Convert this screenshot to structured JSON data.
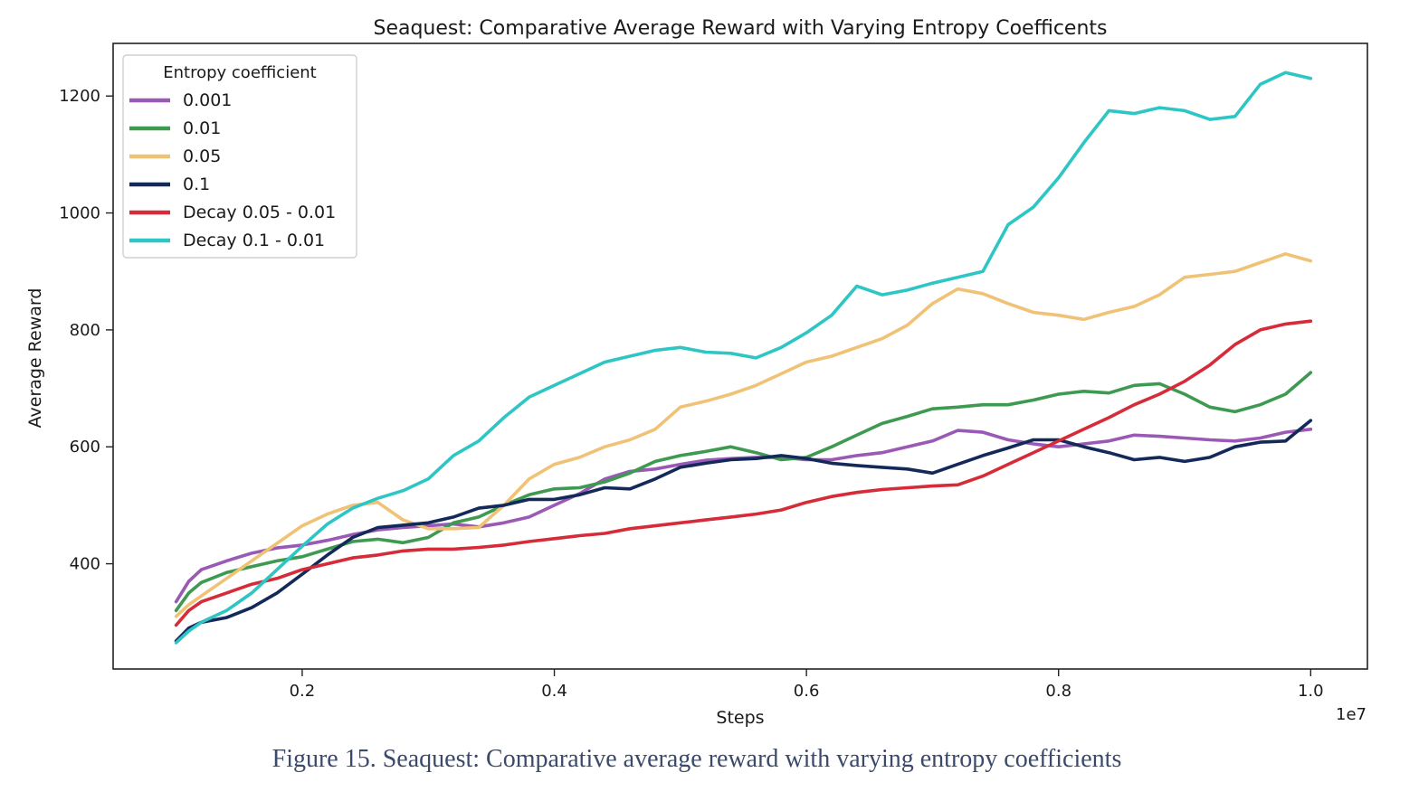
{
  "figure": {
    "caption": "Figure 15. Seaquest: Comparative average reward with varying entropy coefficients",
    "caption_color": "#3b4a6b"
  },
  "chart_data": {
    "type": "line",
    "title": "Seaquest: Comparative Average Reward with Varying Entropy Coefficents",
    "xlabel": "Steps",
    "ylabel": "Average Reward",
    "x_offset_text": "1e7",
    "xlim": [
      0.05,
      1.045
    ],
    "ylim": [
      220,
      1290
    ],
    "xticks": [
      0.2,
      0.4,
      0.6,
      0.8,
      1.0
    ],
    "xtick_labels": [
      "0.2",
      "0.4",
      "0.6",
      "0.8",
      "1.0"
    ],
    "yticks": [
      400,
      600,
      800,
      1000,
      1200
    ],
    "ytick_labels": [
      "400",
      "600",
      "800",
      "1000",
      "1200"
    ],
    "grid": false,
    "legend": {
      "title": "Entropy coefficient",
      "location": "upper-left"
    },
    "series": [
      {
        "name": "0.001",
        "color": "#9b59b6",
        "x": [
          0.1,
          0.11,
          0.12,
          0.14,
          0.16,
          0.18,
          0.2,
          0.22,
          0.24,
          0.26,
          0.28,
          0.3,
          0.32,
          0.34,
          0.36,
          0.38,
          0.4,
          0.42,
          0.44,
          0.46,
          0.48,
          0.5,
          0.52,
          0.54,
          0.56,
          0.58,
          0.6,
          0.62,
          0.64,
          0.66,
          0.68,
          0.7,
          0.72,
          0.74,
          0.76,
          0.78,
          0.8,
          0.82,
          0.84,
          0.86,
          0.88,
          0.9,
          0.92,
          0.94,
          0.96,
          0.98,
          1.0
        ],
        "y": [
          335,
          370,
          390,
          405,
          418,
          427,
          432,
          440,
          450,
          458,
          462,
          465,
          468,
          463,
          470,
          480,
          500,
          520,
          545,
          558,
          562,
          570,
          577,
          580,
          582,
          582,
          578,
          578,
          585,
          590,
          600,
          610,
          628,
          625,
          612,
          605,
          600,
          605,
          610,
          620,
          618,
          615,
          612,
          610,
          615,
          625,
          630
        ]
      },
      {
        "name": "0.01",
        "color": "#3d9a50",
        "x": [
          0.1,
          0.11,
          0.12,
          0.14,
          0.16,
          0.18,
          0.2,
          0.22,
          0.24,
          0.26,
          0.28,
          0.3,
          0.32,
          0.34,
          0.36,
          0.38,
          0.4,
          0.42,
          0.44,
          0.46,
          0.48,
          0.5,
          0.52,
          0.54,
          0.56,
          0.58,
          0.6,
          0.62,
          0.64,
          0.66,
          0.68,
          0.7,
          0.72,
          0.74,
          0.76,
          0.78,
          0.8,
          0.82,
          0.84,
          0.86,
          0.88,
          0.9,
          0.92,
          0.94,
          0.96,
          0.98,
          1.0
        ],
        "y": [
          320,
          350,
          368,
          385,
          395,
          405,
          412,
          425,
          438,
          442,
          436,
          445,
          470,
          480,
          500,
          518,
          528,
          530,
          540,
          555,
          575,
          585,
          592,
          600,
          590,
          578,
          582,
          600,
          620,
          640,
          652,
          665,
          668,
          672,
          672,
          680,
          690,
          695,
          692,
          705,
          708,
          690,
          668,
          660,
          672,
          690,
          727
        ]
      },
      {
        "name": "0.05",
        "color": "#f0c276",
        "x": [
          0.1,
          0.11,
          0.12,
          0.14,
          0.16,
          0.18,
          0.2,
          0.22,
          0.24,
          0.26,
          0.28,
          0.3,
          0.32,
          0.34,
          0.36,
          0.38,
          0.4,
          0.42,
          0.44,
          0.46,
          0.48,
          0.5,
          0.52,
          0.54,
          0.56,
          0.58,
          0.6,
          0.62,
          0.64,
          0.66,
          0.68,
          0.7,
          0.72,
          0.74,
          0.76,
          0.78,
          0.8,
          0.82,
          0.84,
          0.86,
          0.88,
          0.9,
          0.92,
          0.94,
          0.96,
          0.98,
          1.0
        ],
        "y": [
          310,
          330,
          345,
          375,
          405,
          435,
          465,
          485,
          500,
          505,
          475,
          460,
          460,
          462,
          500,
          545,
          570,
          582,
          600,
          612,
          630,
          668,
          678,
          690,
          705,
          725,
          745,
          755,
          770,
          785,
          808,
          845,
          870,
          862,
          845,
          830,
          825,
          818,
          830,
          840,
          860,
          890,
          895,
          900,
          915,
          930,
          918
        ]
      },
      {
        "name": "0.1",
        "color": "#13295a",
        "x": [
          0.1,
          0.11,
          0.12,
          0.14,
          0.16,
          0.18,
          0.2,
          0.22,
          0.24,
          0.26,
          0.28,
          0.3,
          0.32,
          0.34,
          0.36,
          0.38,
          0.4,
          0.42,
          0.44,
          0.46,
          0.48,
          0.5,
          0.52,
          0.54,
          0.56,
          0.58,
          0.6,
          0.62,
          0.64,
          0.66,
          0.68,
          0.7,
          0.72,
          0.74,
          0.76,
          0.78,
          0.8,
          0.82,
          0.84,
          0.86,
          0.88,
          0.9,
          0.92,
          0.94,
          0.96,
          0.98,
          1.0
        ],
        "y": [
          268,
          290,
          300,
          308,
          325,
          350,
          382,
          415,
          445,
          462,
          466,
          470,
          480,
          495,
          500,
          510,
          510,
          518,
          530,
          528,
          545,
          565,
          572,
          578,
          580,
          585,
          580,
          572,
          568,
          565,
          562,
          555,
          570,
          585,
          598,
          612,
          612,
          600,
          590,
          578,
          582,
          575,
          582,
          600,
          608,
          610,
          645
        ]
      },
      {
        "name": "Decay 0.05 - 0.01",
        "color": "#d62b38",
        "x": [
          0.1,
          0.11,
          0.12,
          0.14,
          0.16,
          0.18,
          0.2,
          0.22,
          0.24,
          0.26,
          0.28,
          0.3,
          0.32,
          0.34,
          0.36,
          0.38,
          0.4,
          0.42,
          0.44,
          0.46,
          0.48,
          0.5,
          0.52,
          0.54,
          0.56,
          0.58,
          0.6,
          0.62,
          0.64,
          0.66,
          0.68,
          0.7,
          0.72,
          0.74,
          0.76,
          0.78,
          0.8,
          0.82,
          0.84,
          0.86,
          0.88,
          0.9,
          0.92,
          0.94,
          0.96,
          0.98,
          1.0
        ],
        "y": [
          295,
          320,
          335,
          350,
          365,
          375,
          390,
          400,
          410,
          415,
          422,
          425,
          425,
          428,
          432,
          438,
          443,
          448,
          452,
          460,
          465,
          470,
          475,
          480,
          485,
          492,
          505,
          515,
          522,
          527,
          530,
          533,
          535,
          550,
          570,
          590,
          610,
          630,
          650,
          672,
          690,
          712,
          740,
          775,
          800,
          810,
          815
        ]
      },
      {
        "name": "Decay 0.1 - 0.01",
        "color": "#2ec5c5",
        "x": [
          0.1,
          0.11,
          0.12,
          0.14,
          0.16,
          0.18,
          0.2,
          0.22,
          0.24,
          0.26,
          0.28,
          0.3,
          0.32,
          0.34,
          0.36,
          0.38,
          0.4,
          0.42,
          0.44,
          0.46,
          0.48,
          0.5,
          0.52,
          0.54,
          0.56,
          0.58,
          0.6,
          0.62,
          0.64,
          0.66,
          0.68,
          0.7,
          0.72,
          0.74,
          0.76,
          0.78,
          0.8,
          0.82,
          0.84,
          0.86,
          0.88,
          0.9,
          0.92,
          0.94,
          0.96,
          0.98,
          1.0
        ],
        "y": [
          265,
          285,
          300,
          320,
          350,
          390,
          430,
          468,
          495,
          512,
          525,
          545,
          585,
          610,
          650,
          685,
          705,
          725,
          745,
          755,
          765,
          770,
          762,
          760,
          752,
          770,
          795,
          825,
          875,
          860,
          868,
          880,
          890,
          900,
          980,
          1010,
          1060,
          1120,
          1175,
          1170,
          1180,
          1175,
          1160,
          1165,
          1220,
          1240,
          1230
        ]
      }
    ]
  }
}
